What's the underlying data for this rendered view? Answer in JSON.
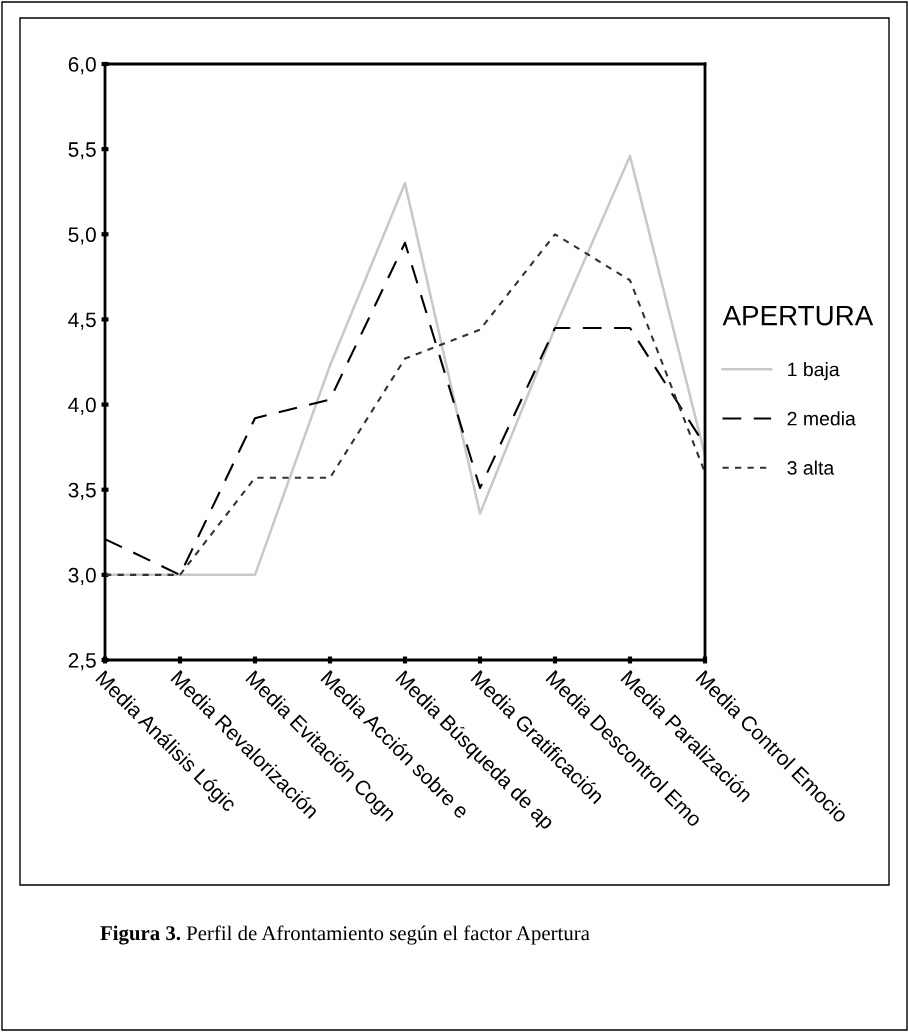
{
  "chart_data": {
    "type": "line",
    "categories": [
      "Media Análisis Lógic",
      "Media Revalorización",
      "Media Evitación Cogn",
      "Media Acción sobre e",
      "Media Búsqueda de ap",
      "Media Gratificación",
      "Media Descontrol Emo",
      "Media Paralización",
      "Media Control Emocio"
    ],
    "series": [
      {
        "name": "1 baja",
        "color": "#c8c8c8",
        "line_style": "solid",
        "values": [
          3.0,
          3.0,
          3.0,
          4.23,
          5.3,
          3.36,
          4.45,
          5.46,
          3.7
        ]
      },
      {
        "name": "2 media",
        "color": "#000000",
        "line_style": "dashed",
        "values": [
          3.21,
          3.0,
          3.92,
          4.03,
          4.95,
          3.51,
          4.45,
          4.45,
          3.76
        ]
      },
      {
        "name": "3 alta",
        "color": "#333333",
        "line_style": "dotted",
        "values": [
          3.0,
          3.0,
          3.57,
          3.57,
          4.27,
          4.44,
          5.0,
          4.73,
          3.6
        ]
      }
    ],
    "ylim": [
      2.5,
      6.0
    ],
    "yticks": [
      {
        "value": 2.5,
        "label": "2,5"
      },
      {
        "value": 3.0,
        "label": "3,0"
      },
      {
        "value": 3.5,
        "label": "3,5"
      },
      {
        "value": 4.0,
        "label": "4,0"
      },
      {
        "value": 4.5,
        "label": "4,5"
      },
      {
        "value": 5.0,
        "label": "5,0"
      },
      {
        "value": 5.5,
        "label": "5,5"
      },
      {
        "value": 6.0,
        "label": "6,0"
      }
    ],
    "legend": "right",
    "legend_title": "APERTURA",
    "grid": false,
    "marker": "none",
    "annotations": [
      "Figura 3. Perfil de Afrontamiento según el factor Apertura"
    ]
  }
}
